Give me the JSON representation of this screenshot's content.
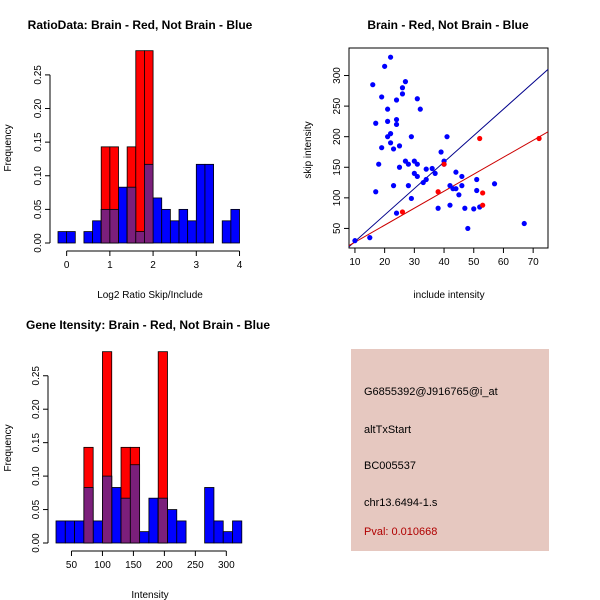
{
  "colors": {
    "red": "#ff0000",
    "blue": "#0000ff",
    "overlap": "#7b1f7b",
    "line_blue": "#00008b",
    "line_red": "#cc0000",
    "pval": "#b00000",
    "info_bg": "#e6c8c0"
  },
  "info": {
    "probe": "G6855392@J916765@i_at",
    "event": "altTxStart",
    "accession": "BC005537",
    "location": "chr13.6494-1.s",
    "pval": "Pval: 0.010668"
  },
  "chart_data": [
    {
      "type": "bar",
      "id": "ratio-hist",
      "title": "RatioData: Brain - Red, Not Brain - Blue",
      "xlabel": "Log2 Ratio Skip/Include",
      "ylabel": "Frequency",
      "xlim": [
        -0.2,
        4.15
      ],
      "ylim": [
        0,
        0.29
      ],
      "xticks": [
        0,
        1,
        2,
        3,
        4
      ],
      "xtick_labels": [
        "0",
        "1",
        "2",
        "3",
        "4"
      ],
      "yticks": [
        0.0,
        0.05,
        0.1,
        0.15,
        0.2,
        0.25
      ],
      "ytick_labels": [
        "0.00",
        "0.05",
        "0.10",
        "0.15",
        "0.20",
        "0.25"
      ],
      "bin_edges": [
        -0.2,
        0.0,
        0.2,
        0.4,
        0.6,
        0.8,
        1.0,
        1.2,
        1.4,
        1.6,
        1.8,
        2.0,
        2.2,
        2.4,
        2.6,
        2.8,
        3.0,
        3.2,
        3.4,
        3.6,
        3.8,
        4.0
      ],
      "series": [
        {
          "name": "Brain",
          "color": "red",
          "values": [
            0,
            0,
            0,
            0,
            0,
            0.143,
            0.143,
            0,
            0.143,
            0.286,
            0.286,
            0,
            0,
            0,
            0,
            0,
            0,
            0,
            0,
            0,
            0
          ]
        },
        {
          "name": "Not Brain",
          "color": "blue",
          "values": [
            0.017,
            0.017,
            0,
            0.017,
            0.033,
            0.05,
            0.05,
            0.083,
            0.083,
            0.017,
            0.117,
            0.067,
            0.05,
            0.033,
            0.05,
            0.033,
            0.117,
            0.117,
            0,
            0.033,
            0.05
          ]
        }
      ]
    },
    {
      "type": "scatter",
      "id": "intensity-scatter",
      "title": "Brain - Red, Not Brain - Blue",
      "xlabel": "include intensity",
      "ylabel": "skip intensity",
      "xlim": [
        8,
        75
      ],
      "ylim": [
        18,
        345
      ],
      "xticks": [
        10,
        20,
        30,
        40,
        50,
        60,
        70
      ],
      "xtick_labels": [
        "10",
        "20",
        "30",
        "40",
        "50",
        "60",
        "70"
      ],
      "yticks": [
        50,
        100,
        150,
        200,
        250,
        300
      ],
      "ytick_labels": [
        "50",
        "100",
        "150",
        "200",
        "250",
        "300"
      ],
      "blue_points": [
        [
          10,
          30
        ],
        [
          15,
          35
        ],
        [
          16,
          285
        ],
        [
          17,
          110
        ],
        [
          17,
          222
        ],
        [
          18,
          155
        ],
        [
          19,
          265
        ],
        [
          19,
          182
        ],
        [
          20,
          315
        ],
        [
          21,
          245
        ],
        [
          21,
          200
        ],
        [
          21,
          225
        ],
        [
          22,
          330
        ],
        [
          22,
          205
        ],
        [
          22,
          190
        ],
        [
          23,
          180
        ],
        [
          23,
          120
        ],
        [
          24,
          220
        ],
        [
          24,
          260
        ],
        [
          24,
          228
        ],
        [
          24,
          75
        ],
        [
          25,
          185
        ],
        [
          25,
          150
        ],
        [
          26,
          280
        ],
        [
          26,
          270
        ],
        [
          27,
          290
        ],
        [
          27,
          160
        ],
        [
          28,
          155
        ],
        [
          28,
          120
        ],
        [
          29,
          200
        ],
        [
          29,
          99
        ],
        [
          30,
          160
        ],
        [
          30,
          140
        ],
        [
          31,
          155
        ],
        [
          31,
          135
        ],
        [
          31,
          262
        ],
        [
          32,
          245
        ],
        [
          33,
          125
        ],
        [
          34,
          130
        ],
        [
          34,
          147
        ],
        [
          36,
          148
        ],
        [
          37,
          140
        ],
        [
          38,
          83
        ],
        [
          39,
          175
        ],
        [
          40,
          160
        ],
        [
          40,
          155
        ],
        [
          41,
          200
        ],
        [
          42,
          120
        ],
        [
          42,
          88
        ],
        [
          43,
          115
        ],
        [
          44,
          115
        ],
        [
          44,
          142
        ],
        [
          45,
          105
        ],
        [
          46,
          120
        ],
        [
          46,
          135
        ],
        [
          47,
          83
        ],
        [
          48,
          50
        ],
        [
          50,
          82
        ],
        [
          51,
          130
        ],
        [
          51,
          112
        ],
        [
          52,
          85
        ],
        [
          57,
          123
        ],
        [
          67,
          58
        ]
      ],
      "red_points": [
        [
          26,
          77
        ],
        [
          38,
          110
        ],
        [
          40,
          155
        ],
        [
          52,
          197
        ],
        [
          53,
          88
        ],
        [
          53,
          108
        ],
        [
          72,
          197
        ]
      ],
      "lines": [
        {
          "name": "blue-fit",
          "color": "line_blue",
          "x": [
            8,
            75
          ],
          "y": [
            20,
            310
          ]
        },
        {
          "name": "red-fit",
          "color": "line_red",
          "x": [
            8,
            75
          ],
          "y": [
            22,
            208
          ]
        }
      ]
    },
    {
      "type": "bar",
      "id": "gene-hist",
      "title": "Gene Itensity: Brain - Red, Not Brain - Blue",
      "xlabel": "Intensity",
      "ylabel": "Frequency",
      "xlim": [
        25,
        335
      ],
      "ylim": [
        0,
        0.29
      ],
      "xticks": [
        50,
        100,
        150,
        200,
        250,
        300
      ],
      "xtick_labels": [
        "50",
        "100",
        "150",
        "200",
        "250",
        "300"
      ],
      "yticks": [
        0.0,
        0.05,
        0.1,
        0.15,
        0.2,
        0.25
      ],
      "ytick_labels": [
        "0.00",
        "0.05",
        "0.10",
        "0.15",
        "0.20",
        "0.25"
      ],
      "bin_edges": [
        25,
        40,
        55,
        70,
        85,
        100,
        115,
        130,
        145,
        160,
        175,
        190,
        205,
        220,
        235,
        250,
        265,
        280,
        295,
        310,
        325
      ],
      "series": [
        {
          "name": "Brain",
          "color": "red",
          "values": [
            0,
            0,
            0,
            0.143,
            0,
            0.286,
            0,
            0.143,
            0.143,
            0,
            0,
            0.286,
            0,
            0,
            0,
            0,
            0,
            0,
            0,
            0
          ]
        },
        {
          "name": "Not Brain",
          "color": "blue",
          "values": [
            0.033,
            0.033,
            0.033,
            0.083,
            0.033,
            0.1,
            0.083,
            0.067,
            0.117,
            0.017,
            0.067,
            0.067,
            0.05,
            0.033,
            0,
            0,
            0.083,
            0.033,
            0.017,
            0.033
          ]
        }
      ]
    }
  ]
}
